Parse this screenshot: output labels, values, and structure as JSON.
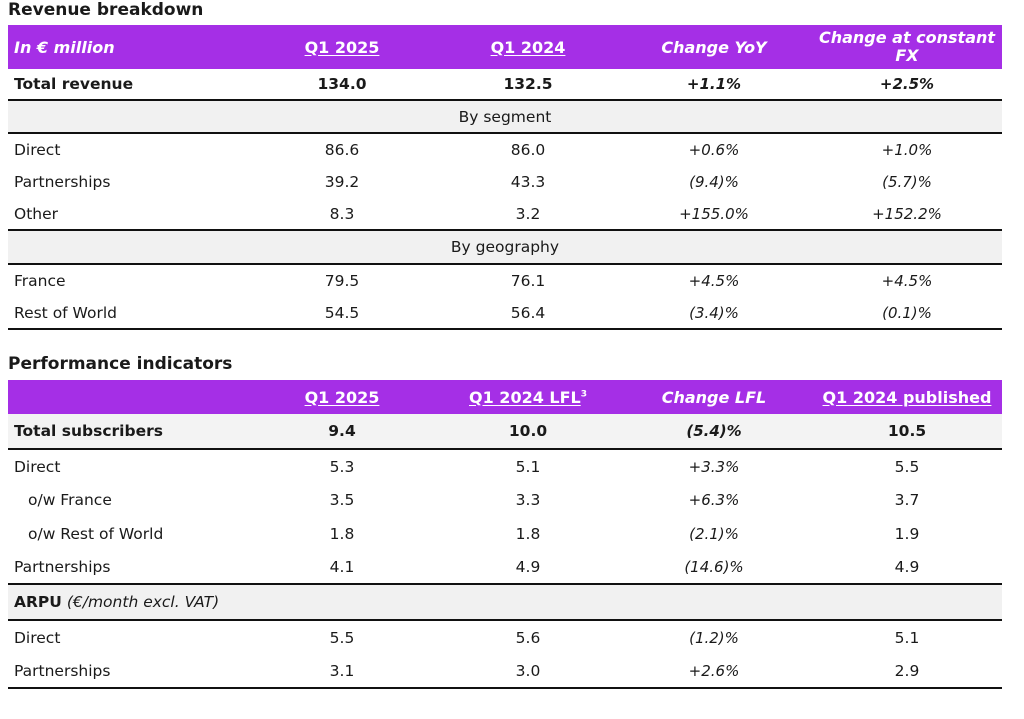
{
  "revenue": {
    "title": "Revenue breakdown",
    "headers": [
      "In € million",
      "Q1 2025",
      "Q1 2024",
      "Change YoY",
      "Change at constant FX"
    ],
    "total": [
      "Total revenue",
      "134.0",
      "132.5",
      "+1.1%",
      "+2.5%"
    ],
    "segment_label": "By segment",
    "segment_rows": [
      [
        "Direct",
        "86.6",
        "86.0",
        "+0.6%",
        "+1.0%"
      ],
      [
        "Partnerships",
        "39.2",
        "43.3",
        "(9.4)%",
        "(5.7)%"
      ],
      [
        "Other",
        "8.3",
        "3.2",
        "+155.0%",
        "+152.2%"
      ]
    ],
    "geo_label": "By geography",
    "geo_rows": [
      [
        "France",
        "79.5",
        "76.1",
        "+4.5%",
        "+4.5%"
      ],
      [
        "Rest of World",
        "54.5",
        "56.4",
        "(3.4)%",
        "(0.1)%"
      ]
    ]
  },
  "performance": {
    "title": "Performance indicators",
    "headers": [
      "",
      "Q1 2025",
      "Q1 2024 LFL",
      "Change LFL",
      "Q1 2024 published"
    ],
    "header_footnote": "3",
    "subscribers_total": [
      "Total subscribers",
      "9.4",
      "10.0",
      "(5.4)%",
      "10.5"
    ],
    "subscriber_rows": [
      [
        "Direct",
        "5.3",
        "5.1",
        "+3.3%",
        "5.5"
      ],
      [
        "o/w France",
        "3.5",
        "3.3",
        "+6.3%",
        "3.7"
      ],
      [
        "o/w Rest of World",
        "1.8",
        "1.8",
        "(2.1)%",
        "1.9"
      ],
      [
        "Partnerships",
        "4.1",
        "4.9",
        "(14.6)%",
        "4.9"
      ]
    ],
    "arpu_label": "ARPU",
    "arpu_sub": "(€/month excl. VAT)",
    "arpu_rows": [
      [
        "Direct",
        "5.5",
        "5.6",
        "(1.2)%",
        "5.1"
      ],
      [
        "Partnerships",
        "3.1",
        "3.0",
        "+2.6%",
        "2.9"
      ]
    ]
  },
  "colors": {
    "header_bg": "#a52fe6",
    "band_bg": "#f1f1f1"
  }
}
